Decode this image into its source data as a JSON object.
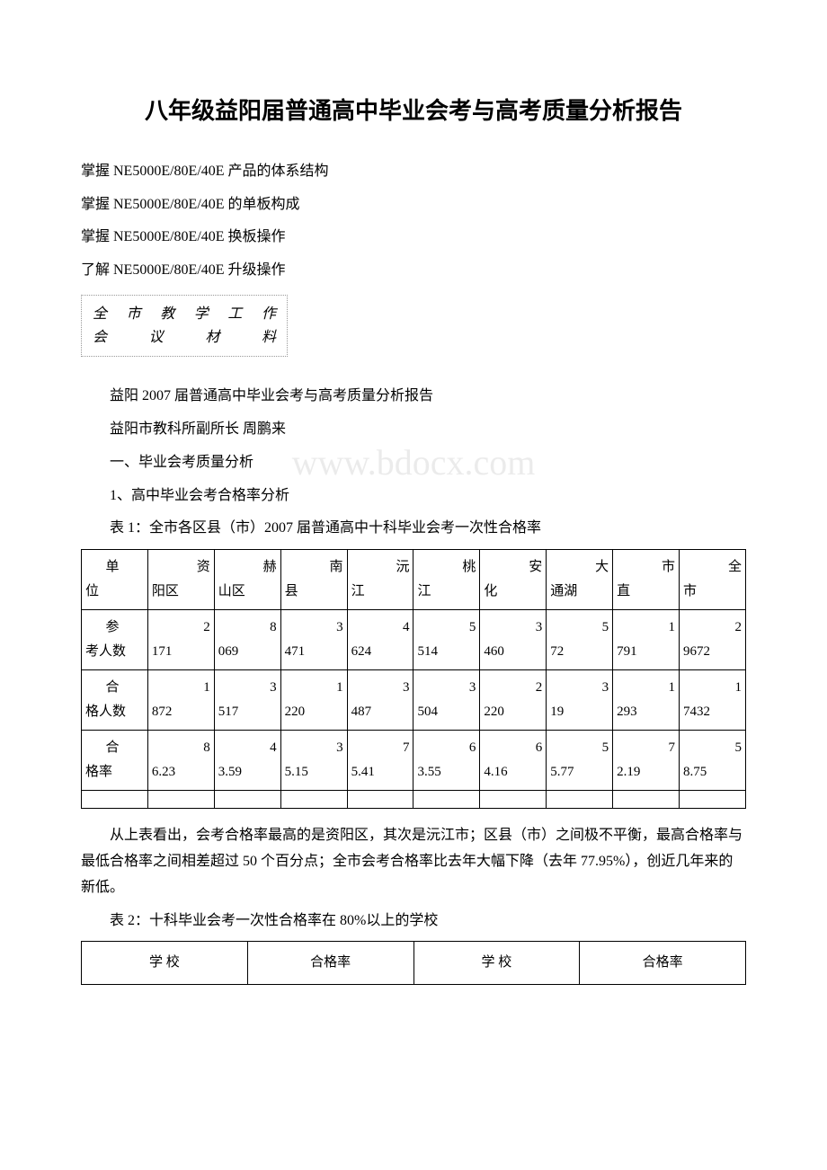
{
  "title": "八年级益阳届普通高中毕业会考与高考质量分析报告",
  "bullets": [
    " 掌握 NE5000E/80E/40E 产品的体系结构",
    " 掌握 NE5000E/80E/40E 的单板构成",
    " 掌握 NE5000E/80E/40E 换板操作",
    " 了解 NE5000E/80E/40E 升级操作"
  ],
  "meeting_box_line1": "全市教学工作",
  "meeting_box_line2": "会议材料",
  "intro_lines": [
    "益阳 2007 届普通高中毕业会考与高考质量分析报告",
    "益阳市教科所副所长 周鹏来",
    "一、毕业会考质量分析",
    "1、高中毕业会考合格率分析",
    "表 1：全市各区县（市）2007 届普通高中十科毕业会考一次性合格率"
  ],
  "watermark": "www.bdocx.com",
  "table1": {
    "row_labels_line1": [
      "单",
      "参",
      "合",
      "合"
    ],
    "row_labels_line2": [
      "位",
      "考人数",
      "格人数",
      "格率"
    ],
    "col_headers_line1": [
      "资",
      "赫",
      "南",
      "沅",
      "桃",
      "安",
      "大",
      "市",
      "全"
    ],
    "col_headers_line2": [
      "阳区",
      "山区",
      "县",
      "江",
      "江",
      "化",
      "通湖",
      "直",
      "市"
    ],
    "rows": [
      {
        "pre": [
          "2",
          "8",
          "3",
          "4",
          "5",
          "3",
          "5",
          "1",
          "2"
        ],
        "val": [
          "171",
          "069",
          "471",
          "624",
          "514",
          "460",
          "72",
          "791",
          "9672"
        ]
      },
      {
        "pre": [
          "1",
          "3",
          "1",
          "3",
          "3",
          "2",
          "3",
          "1",
          "1"
        ],
        "val": [
          "872",
          "517",
          "220",
          "487",
          "504",
          "220",
          "19",
          "293",
          "7432"
        ]
      },
      {
        "pre": [
          "8",
          "4",
          "3",
          "7",
          "6",
          "6",
          "5",
          "7",
          "5"
        ],
        "val": [
          "6.23",
          "3.59",
          "5.15",
          "5.41",
          "3.55",
          "4.16",
          "5.77",
          "2.19",
          "8.75"
        ]
      }
    ]
  },
  "para_after_table1": "从上表看出，会考合格率最高的是资阳区，其次是沅江市；区县（市）之间极不平衡，最高合格率与最低合格率之间相差超过 50 个百分点；全市会考合格率比去年大幅下降（去年 77.95%），创近几年来的新低。",
  "table2_caption": "表 2：十科毕业会考一次性合格率在 80%以上的学校",
  "table2_headers": [
    "学 校",
    "合格率",
    "学 校",
    "合格率"
  ]
}
